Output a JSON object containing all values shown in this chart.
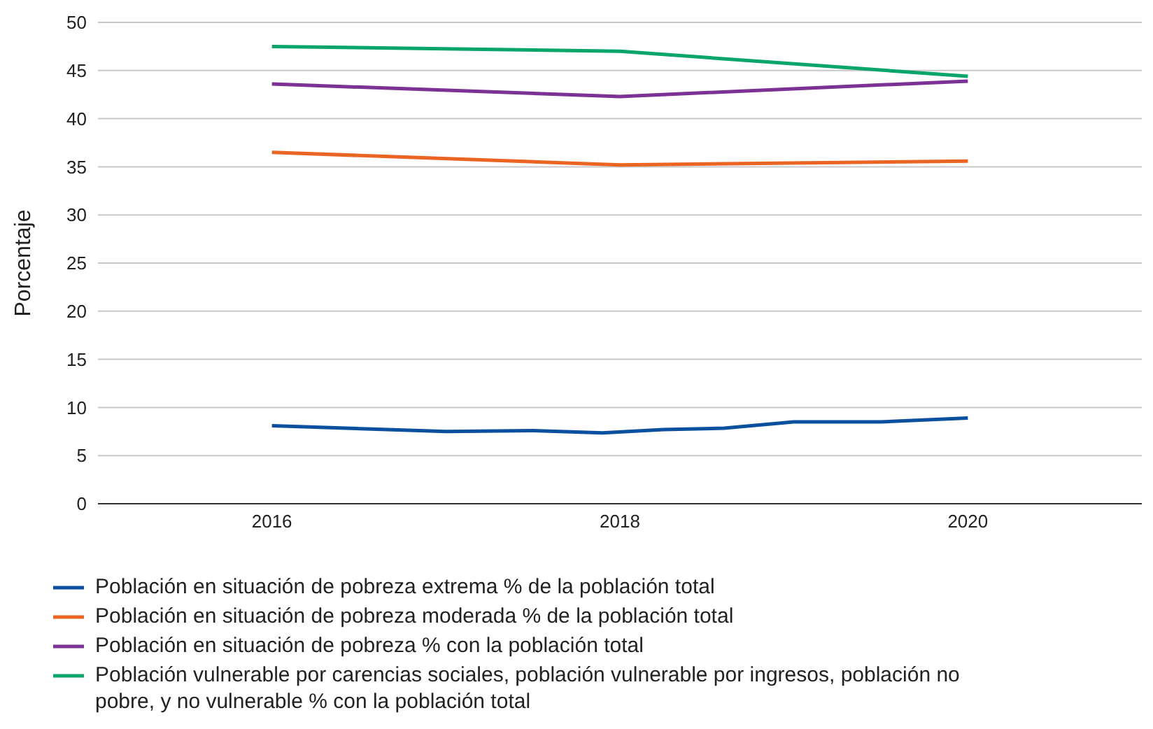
{
  "chart_data": {
    "type": "line",
    "ylabel": "Porcentaje",
    "xlim": [
      2015,
      2021
    ],
    "xticks": [
      2016,
      2018,
      2020
    ],
    "ylim": [
      0,
      50
    ],
    "yticks": [
      0,
      5,
      10,
      15,
      20,
      25,
      30,
      35,
      40,
      45,
      50
    ],
    "grid": "y",
    "legend": "bottom",
    "marker": "none",
    "line_style": "solid",
    "series": [
      {
        "name": "Población en situación de pobreza extrema % de la población total",
        "color": "#0a509e",
        "x": [
          2016,
          2017,
          2017.5,
          2017.9,
          2018.25,
          2018.6,
          2019,
          2019.5,
          2020
        ],
        "values": [
          8.1,
          7.5,
          7.6,
          7.35,
          7.7,
          7.85,
          8.5,
          8.5,
          8.9
        ]
      },
      {
        "name": "Población en situación de pobreza moderada % de la población total",
        "color": "#ea6424",
        "x": [
          2016,
          2018,
          2020
        ],
        "values": [
          36.5,
          35.2,
          35.6
        ]
      },
      {
        "name": "Población en situación de pobreza % con la población total",
        "color": "#7b3294",
        "x": [
          2016,
          2018,
          2020
        ],
        "values": [
          43.6,
          42.3,
          43.9
        ]
      },
      {
        "name": "Población vulnerable por carencias sociales, población vulnerable por ingresos, población no pobre, y no vulnerable % con la población total",
        "color": "#0aa56a",
        "x": [
          2016,
          2018,
          2020
        ],
        "values": [
          47.5,
          47.0,
          44.4
        ]
      }
    ]
  }
}
